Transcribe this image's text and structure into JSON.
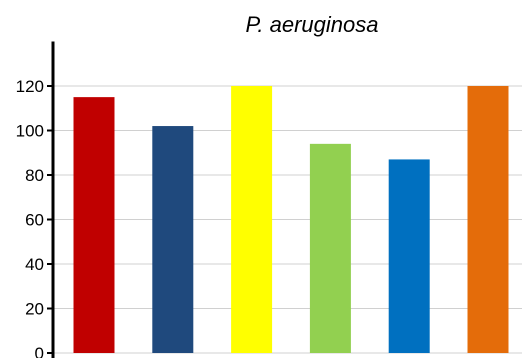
{
  "chart_data": {
    "type": "bar",
    "title": "P. aeruginosa",
    "xlabel": "",
    "ylabel": "",
    "categories": [
      "",
      "",
      "",
      "",
      "",
      ""
    ],
    "values": [
      115,
      102,
      120,
      94,
      87,
      120
    ],
    "colors": [
      "#C00000",
      "#1F497D",
      "#FFFF00",
      "#92D050",
      "#0070C0",
      "#E46C0A"
    ],
    "ylim": [
      0,
      140
    ],
    "yticks": [
      0,
      20,
      40,
      60,
      80,
      100,
      120
    ],
    "grid": true,
    "legend": "none"
  }
}
